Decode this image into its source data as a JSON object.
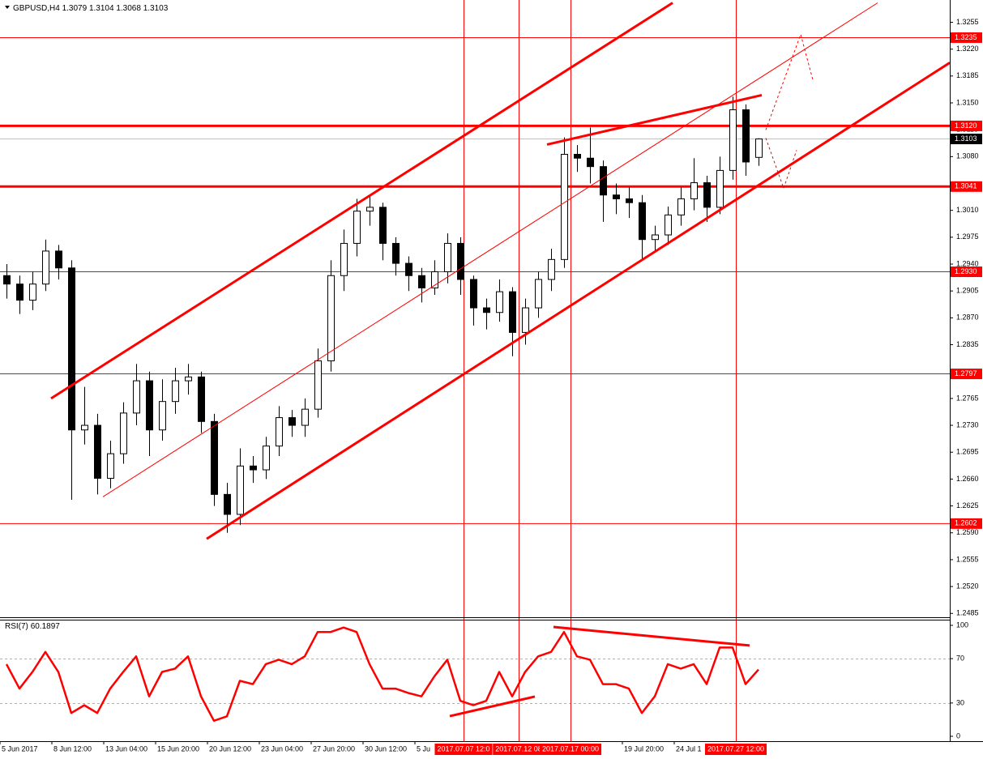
{
  "chart_data": {
    "type": "candlestick",
    "symbol": "GBPUSD,H4",
    "x": [
      2,
      6,
      10,
      14,
      18,
      22,
      26,
      30,
      34,
      38,
      42,
      46,
      50,
      54,
      58,
      62,
      66,
      70,
      74,
      78,
      82,
      86,
      90,
      94,
      98,
      102,
      106,
      110,
      114,
      118,
      122,
      126,
      130,
      134,
      138,
      142,
      146,
      150,
      154,
      158,
      162,
      166,
      170,
      174,
      178,
      182,
      186,
      190,
      194,
      198,
      202,
      206,
      210,
      214,
      218,
      222,
      226,
      230,
      234
    ],
    "open": [
      1.2925,
      1.2914,
      1.2893,
      1.2914,
      1.2957,
      1.2935,
      1.2724,
      1.273,
      1.2661,
      1.2693,
      1.2746,
      1.2788,
      1.2724,
      1.2761,
      1.2788,
      1.2793,
      1.2735,
      1.264,
      1.2614,
      1.2677,
      1.2672,
      1.2703,
      1.274,
      1.273,
      1.2751,
      1.2814,
      1.2925,
      1.2967,
      1.3009,
      1.3014,
      1.2967,
      1.2941,
      1.2925,
      1.2909,
      1.293,
      1.2967,
      1.292,
      1.2883,
      1.2877,
      1.2904,
      1.2851,
      1.2883,
      1.292,
      1.2946,
      1.3083,
      1.3078,
      1.3067,
      1.303,
      1.3025,
      1.302,
      1.2972,
      1.2978,
      1.3004,
      1.3025,
      1.3046,
      1.3014,
      1.3062,
      1.3141,
      1.3079
    ],
    "high": [
      1.294,
      1.2925,
      1.293,
      1.2972,
      1.2965,
      1.2945,
      1.278,
      1.2745,
      1.271,
      1.276,
      1.281,
      1.28,
      1.279,
      1.2805,
      1.281,
      1.28,
      1.2745,
      1.2655,
      1.27,
      1.269,
      1.2715,
      1.2755,
      1.275,
      1.2765,
      1.283,
      1.2945,
      1.2985,
      1.3025,
      1.303,
      1.302,
      1.2975,
      1.295,
      1.2935,
      1.2945,
      1.298,
      1.2975,
      1.2925,
      1.2895,
      1.292,
      1.291,
      1.2895,
      1.293,
      1.296,
      1.3105,
      1.3095,
      1.3118,
      1.3075,
      1.3045,
      1.304,
      1.303,
      1.299,
      1.3015,
      1.304,
      1.3078,
      1.3055,
      1.308,
      1.3158,
      1.3148,
      1.3104
    ],
    "low": [
      1.2895,
      1.2875,
      1.288,
      1.2905,
      1.292,
      1.2633,
      1.2705,
      1.264,
      1.2648,
      1.268,
      1.273,
      1.269,
      1.271,
      1.2745,
      1.277,
      1.272,
      1.2625,
      1.259,
      1.26,
      1.2655,
      1.266,
      1.269,
      1.2715,
      1.2715,
      1.274,
      1.28,
      1.2905,
      1.295,
      1.299,
      1.2945,
      1.2925,
      1.2905,
      1.289,
      1.29,
      1.2915,
      1.29,
      1.286,
      1.2855,
      1.2865,
      1.282,
      1.2835,
      1.287,
      1.2905,
      1.2935,
      1.306,
      1.3045,
      1.2995,
      1.3005,
      1.3,
      1.2945,
      1.2955,
      1.2965,
      1.299,
      1.301,
      1.2995,
      1.3005,
      1.305,
      1.3055,
      1.3068
    ],
    "close": [
      1.2914,
      1.2893,
      1.2914,
      1.2957,
      1.2935,
      1.2724,
      1.273,
      1.2661,
      1.2693,
      1.2746,
      1.2788,
      1.2724,
      1.2761,
      1.2788,
      1.2793,
      1.2735,
      1.264,
      1.2614,
      1.2677,
      1.2672,
      1.2703,
      1.274,
      1.273,
      1.2751,
      1.2814,
      1.2925,
      1.2967,
      1.3009,
      1.3014,
      1.2967,
      1.2941,
      1.2925,
      1.2909,
      1.293,
      1.2967,
      1.292,
      1.2883,
      1.2877,
      1.2904,
      1.2851,
      1.2883,
      1.292,
      1.2946,
      1.3083,
      1.3078,
      1.3067,
      1.303,
      1.3025,
      1.302,
      1.2972,
      1.2978,
      1.3004,
      1.3025,
      1.3046,
      1.3014,
      1.3062,
      1.3141,
      1.3073,
      1.3103
    ],
    "up_color": "#ffffff",
    "down_color": "#000000",
    "line_color": "#ff0000",
    "xlim": [
      0,
      293
    ],
    "xticks": [
      {
        "value": 0,
        "label": "5 Jun 2017"
      },
      {
        "value": 16,
        "label": "8 Jun 12:00"
      },
      {
        "value": 32,
        "label": "13 Jun 04:00"
      },
      {
        "value": 48,
        "label": "15 Jun 20:00"
      },
      {
        "value": 64,
        "label": "20 Jun 12:00"
      },
      {
        "value": 80,
        "label": "23 Jun 04:00"
      },
      {
        "value": 96,
        "label": "27 Jun 20:00"
      },
      {
        "value": 112,
        "label": "30 Jun 12:00"
      },
      {
        "value": 128,
        "label": "5 Ju"
      },
      {
        "value": 192,
        "label": "19 Jul 20:00"
      },
      {
        "value": 208,
        "label": "24 Jul 1"
      }
    ],
    "ylim": [
      1.248,
      1.3284
    ],
    "yticks": [
      1.3255,
      {
        "value": 1.322,
        "label": "1.3220"
      },
      1.3185,
      {
        "value": 1.315,
        "label": "1.3150"
      },
      1.3115,
      {
        "value": 1.308,
        "label": "1.3080"
      },
      {
        "value": 1.301,
        "label": "1.3010"
      },
      1.2975,
      {
        "value": 1.294,
        "label": "1.2940"
      },
      1.2905,
      {
        "value": 1.287,
        "label": "1.2870"
      },
      1.2835,
      1.2765,
      {
        "value": 1.273,
        "label": "1.2730"
      },
      1.2695,
      {
        "value": 1.266,
        "label": "1.2660"
      },
      1.2625,
      {
        "value": 1.259,
        "label": "1.2590"
      },
      1.2555,
      {
        "value": 1.252,
        "label": "1.2520"
      },
      1.2485
    ],
    "levels": [
      {
        "value": 1.3235,
        "style": "thin"
      },
      {
        "value": 1.312,
        "label": "1.3120",
        "style": "thick"
      },
      {
        "value": 1.3041,
        "style": "thick"
      },
      {
        "value": 1.293,
        "label": "1.2930",
        "style": "thin"
      },
      {
        "value": 1.2797,
        "style": "thin"
      },
      {
        "value": 1.2602,
        "style": "thin"
      }
    ],
    "vlines": [
      {
        "value": 143,
        "label": "2017.07.07 12:0"
      },
      {
        "value": 160,
        "label": "2017.07.12 08"
      },
      {
        "value": 176,
        "label": "2017.07.17 00:00"
      },
      {
        "value": 227,
        "label": "2017.07.27 12:00"
      }
    ],
    "trendlines": [
      {
        "x": [
          15.75,
          207.5
        ],
        "y": [
          1.2765,
          1.32803
        ],
        "style": "thick"
      },
      {
        "x": [
          31.75,
          270.75
        ],
        "y": [
          1.26369,
          1.32803
        ],
        "style": "thin"
      },
      {
        "x": [
          63.75,
          293
        ],
        "y": [
          1.25821,
          1.32023
        ],
        "style": "thick"
      },
      {
        "x": [
          168.75,
          235
        ],
        "y": [
          1.30957,
          1.31601
        ],
        "style": "thick"
      },
      {
        "x": [
          236.25,
          247,
          250.75
        ],
        "y": [
          1.31147,
          1.32392,
          1.31801
        ],
        "style": "dotted"
      },
      {
        "x": [
          236.25,
          241.75,
          245.75
        ],
        "y": [
          1.31042,
          1.30388,
          1.30884
        ],
        "style": "dotted"
      }
    ],
    "rsi": {
      "type": "line",
      "name": "RSI(7)",
      "color": "#ff0000",
      "values": [
        65,
        43,
        58,
        76,
        58,
        21,
        28,
        21,
        43,
        58,
        72,
        36,
        58,
        61,
        72,
        36,
        14,
        18,
        50,
        47,
        65,
        69,
        65,
        72,
        94,
        94,
        98,
        94,
        65,
        43,
        43,
        39,
        36,
        54,
        69,
        32,
        28,
        32,
        58,
        36,
        58,
        72,
        76,
        94,
        72,
        69,
        47,
        47,
        43,
        21,
        36,
        65,
        61,
        65,
        47,
        80,
        80,
        47,
        60.1897
      ],
      "ylim": [
        -4.4,
        105.1
      ],
      "yticks": [
        100,
        70,
        30,
        0
      ],
      "levels": [
        70,
        30
      ],
      "trendlines": [
        {
          "x": [
            138.75,
            165
          ],
          "y": [
            18.2,
            35.8
          ],
          "style": "thick"
        },
        {
          "x": [
            170.75,
            231.25
          ],
          "y": [
            98.5,
            81.8
          ],
          "style": "thick"
        }
      ]
    }
  }
}
